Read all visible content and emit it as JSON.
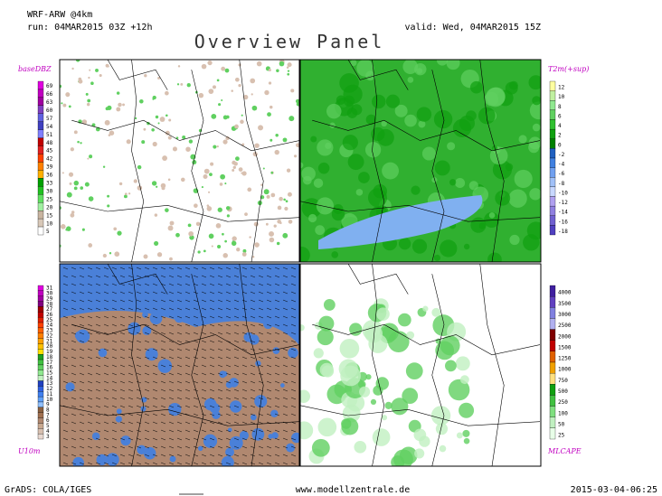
{
  "header": {
    "model": "WRF-ARW @4km",
    "run": "run: 04MAR2015 03Z +12h",
    "valid": "valid: Wed, 04MAR2015 15Z",
    "title": "Overview Panel"
  },
  "panels": [
    {
      "label": "baseDBZ",
      "ticks": [
        69,
        66,
        63,
        60,
        57,
        54,
        51,
        48,
        45,
        42,
        39,
        36,
        33,
        30,
        25,
        20,
        15,
        10,
        5
      ],
      "colors": [
        "#e000e0",
        "#c000c0",
        "#a000a0",
        "#8040c0",
        "#6060e0",
        "#4040c0",
        "#8080ff",
        "#c00000",
        "#e02020",
        "#ff4000",
        "#ff8000",
        "#ffb000",
        "#00a000",
        "#20c020",
        "#60e060",
        "#a0f0a0",
        "#c8b4a0",
        "#d8c8b8",
        "#ffffff"
      ]
    },
    {
      "label": "T2m(+sup)",
      "ticks": [
        12,
        10,
        8,
        6,
        4,
        2,
        0,
        -2,
        -4,
        -6,
        -8,
        -10,
        -12,
        -14,
        -16,
        -18
      ],
      "colors": [
        "#ffffa0",
        "#c0f0a0",
        "#90e890",
        "#60d060",
        "#30c030",
        "#10a010",
        "#008000",
        "#2060c0",
        "#4080e0",
        "#70a0f0",
        "#a0c0f8",
        "#c8d8ff",
        "#b0a0f0",
        "#9080e0",
        "#7060d0",
        "#5040c0"
      ]
    },
    {
      "label": "U10m",
      "ticks": [
        31,
        30,
        29,
        28,
        27,
        26,
        25,
        24,
        23,
        22,
        21,
        20,
        19,
        18,
        17,
        16,
        15,
        14,
        13,
        12,
        11,
        10,
        9,
        8,
        7,
        6,
        5,
        4,
        3
      ],
      "colors": [
        "#e000e0",
        "#c000c0",
        "#a000a0",
        "#800080",
        "#a00000",
        "#c00000",
        "#e02000",
        "#ff4000",
        "#ff6000",
        "#ff8000",
        "#ffa000",
        "#ffc000",
        "#ffe000",
        "#20a020",
        "#40c040",
        "#60d060",
        "#90e890",
        "#c0f0c0",
        "#2040c0",
        "#3060e0",
        "#4080f0",
        "#60a0f8",
        "#90c0ff",
        "#8a6040",
        "#a07050",
        "#b08870",
        "#c8a890",
        "#d8c0b0",
        "#e8d8d0"
      ]
    },
    {
      "label": "MLCAPE",
      "ticks": [
        4000,
        3500,
        3000,
        2500,
        2000,
        1500,
        1250,
        1000,
        750,
        500,
        250,
        100,
        50,
        25
      ],
      "colors": [
        "#4020a0",
        "#6040c0",
        "#8080e0",
        "#b0b0f0",
        "#800000",
        "#c00000",
        "#e06000",
        "#f0a000",
        "#ffe080",
        "#10a010",
        "#40c040",
        "#80e080",
        "#c0f0c0",
        "#e8ffe8"
      ]
    }
  ],
  "footer": {
    "left": "GrADS: COLA/IGES",
    "center": "www.modellzentrale.de",
    "right": "2015-03-04-06:25"
  }
}
